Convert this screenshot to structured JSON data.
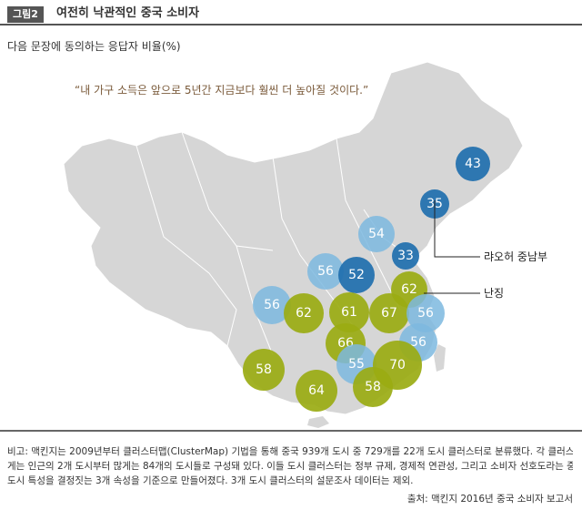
{
  "header": {
    "badge": "그림2",
    "title": "여전히 낙관적인 중국 소비자"
  },
  "subtitle": "다음 문장에 동의하는 응답자 비율(%)",
  "quote": "“내 가구 소득은 앞으로 5년간 지금보다 훨씬 더 높아질 것이다.”",
  "colors": {
    "dark_blue": "#1f6fae",
    "light_blue": "#7db9df",
    "olive": "#9aab12",
    "land": "#d6d6d6"
  },
  "clusters": [
    {
      "value": "43",
      "color": "dark_blue"
    },
    {
      "value": "35",
      "color": "dark_blue"
    },
    {
      "value": "54",
      "color": "light_blue"
    },
    {
      "value": "33",
      "color": "dark_blue"
    },
    {
      "value": "56",
      "color": "light_blue"
    },
    {
      "value": "52",
      "color": "dark_blue"
    },
    {
      "value": "62",
      "color": "olive"
    },
    {
      "value": "56",
      "color": "light_blue"
    },
    {
      "value": "62",
      "color": "olive"
    },
    {
      "value": "61",
      "color": "olive"
    },
    {
      "value": "67",
      "color": "olive"
    },
    {
      "value": "56",
      "color": "light_blue"
    },
    {
      "value": "66",
      "color": "olive"
    },
    {
      "value": "56",
      "color": "light_blue"
    },
    {
      "value": "55",
      "color": "light_blue"
    },
    {
      "value": "70",
      "color": "olive"
    },
    {
      "value": "58",
      "color": "olive"
    },
    {
      "value": "64",
      "color": "olive"
    },
    {
      "value": "58",
      "color": "olive"
    }
  ],
  "callouts": {
    "liaoning": "랴오허 중남부",
    "nanjing": "난징"
  },
  "note": {
    "line1": "비고: 맥킨지는 2009년부터 클러스터맵(ClusterMap) 기법을 통해 중국 939개 도시 중 729개를 22개 도시 클러스터로 분류했다. 각 클러스터는 적",
    "line2": "게는 인근의 2개 도시부터 많게는 84개의 도시들로 구성돼 있다. 이들 도시 클러스터는 정부 규제, 경제적 연관성, 그리고 소비자 선호도라는 중국의",
    "line3": "도시 특성을 결정짓는 3개 속성을 기준으로 만들어졌다. 3개 도시 클러스터의 설문조사 데이터는 제외."
  },
  "source": "출처: 맥킨지 2016년 중국 소비자 보고서"
}
